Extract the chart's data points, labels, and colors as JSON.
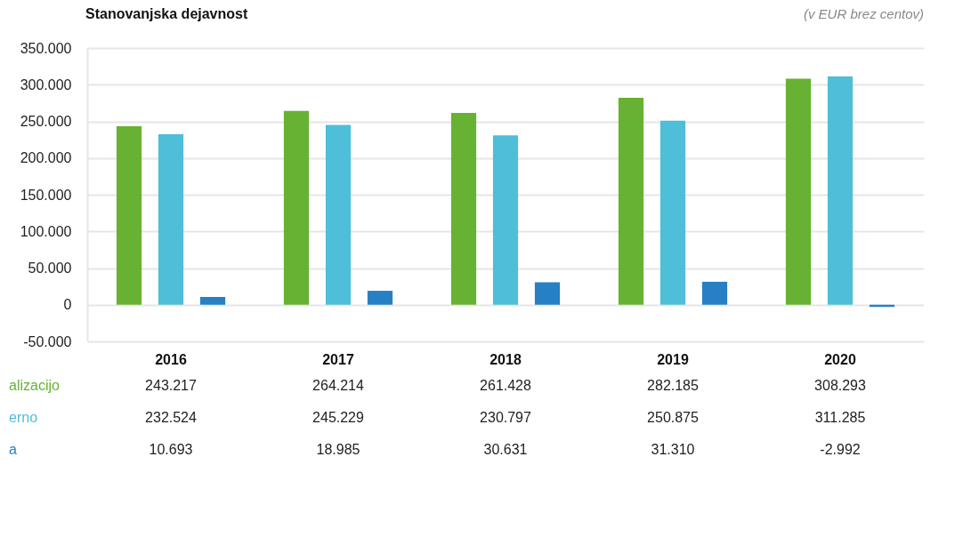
{
  "chart_data": {
    "type": "bar",
    "title": "Stanovanjska dejavnost",
    "subtitle": "(v EUR brez centov)",
    "categories": [
      "2016",
      "2017",
      "2018",
      "2019",
      "2020"
    ],
    "series": [
      {
        "name": "alizacijo",
        "color": "#67b232",
        "values": [
          243217,
          264214,
          261428,
          282185,
          308293
        ],
        "value_labels": [
          "243.217",
          "264.214",
          "261.428",
          "282.185",
          "308.293"
        ]
      },
      {
        "name": "erno",
        "color": "#4ebed9",
        "values": [
          232524,
          245229,
          230797,
          250875,
          311285
        ],
        "value_labels": [
          "232.524",
          "245.229",
          "230.797",
          "250.875",
          "311.285"
        ]
      },
      {
        "name": "a",
        "color": "#2780c4",
        "values": [
          10693,
          18985,
          30631,
          31310,
          -2992
        ],
        "value_labels": [
          "10.693",
          "18.985",
          "30.631",
          "31.310",
          "-2.992"
        ]
      }
    ],
    "ylim": [
      -50000,
      350000
    ],
    "yticks": [
      {
        "value": -50000,
        "label": "-50.000"
      },
      {
        "value": 0,
        "label": "0"
      },
      {
        "value": 50000,
        "label": "50.000"
      },
      {
        "value": 100000,
        "label": "100.000"
      },
      {
        "value": 150000,
        "label": "150.000"
      },
      {
        "value": 200000,
        "label": "200.000"
      },
      {
        "value": 250000,
        "label": "250.000"
      },
      {
        "value": 300000,
        "label": "300.000"
      },
      {
        "value": 350000,
        "label": "350.000"
      }
    ],
    "grid": "y"
  }
}
